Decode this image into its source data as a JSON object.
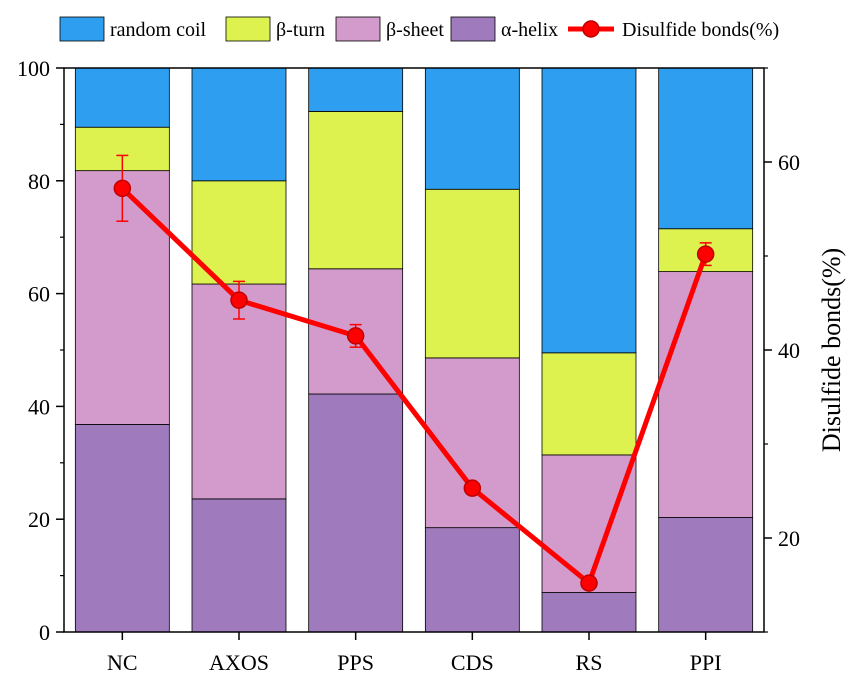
{
  "chart_data": {
    "type": "bar",
    "stacked": true,
    "categories": [
      "NC",
      "AXOS",
      "PPS",
      "CDS",
      "RS",
      "PPI"
    ],
    "series": [
      {
        "name": "α-helix",
        "color": "#9f7bbd",
        "values": [
          36.8,
          23.6,
          42.2,
          18.5,
          7.0,
          20.3
        ]
      },
      {
        "name": "β-sheet",
        "color": "#d39bcb",
        "values": [
          45.0,
          38.1,
          22.2,
          30.1,
          24.4,
          43.6
        ]
      },
      {
        "name": "β-turn",
        "color": "#ddf24f",
        "values": [
          7.7,
          18.3,
          27.9,
          29.9,
          18.1,
          7.6
        ]
      },
      {
        "name": "random coil",
        "color": "#2e9ff0",
        "values": [
          10.5,
          20.0,
          7.7,
          21.5,
          50.5,
          28.5
        ]
      }
    ],
    "line_series": {
      "name": "Disulfide bonds(%)",
      "color": "#ff0000",
      "axis": "right",
      "values": [
        57.2,
        45.3,
        41.5,
        25.3,
        15.2,
        50.2
      ],
      "error": [
        3.5,
        2.0,
        1.2,
        0,
        0,
        1.2
      ]
    },
    "ylim": [
      0,
      100
    ],
    "yticks": [
      0,
      20,
      40,
      60,
      80,
      100
    ],
    "y2label": "Disulfide bonds(%)",
    "y2lim": [
      10,
      70
    ],
    "y2ticks": [
      20,
      40,
      60
    ],
    "legend_position": "top",
    "legend_order": [
      "random coil",
      "β-turn",
      "β-sheet",
      "α-helix",
      "Disulfide bonds(%)"
    ]
  }
}
